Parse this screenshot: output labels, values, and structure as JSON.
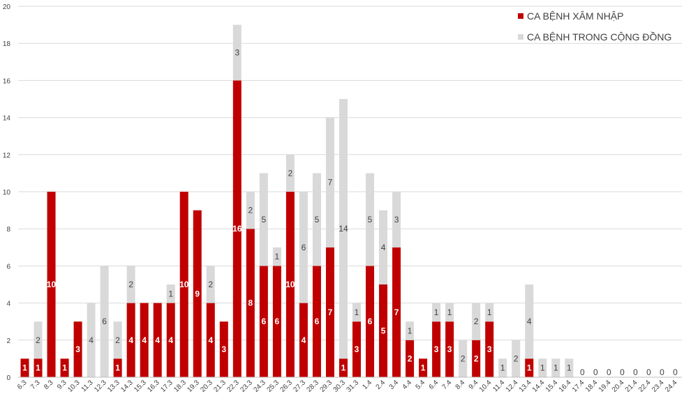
{
  "colors": {
    "imported": "#c00000",
    "community": "#d9d9d9",
    "grid": "#d9d9d9",
    "axis": "#bfbfbf"
  },
  "chart_data": {
    "type": "bar",
    "stacked": true,
    "title": "",
    "xlabel": "",
    "ylabel": "",
    "ylim": [
      0,
      20
    ],
    "yticks": [
      0,
      2,
      4,
      6,
      8,
      10,
      12,
      14,
      16,
      18,
      20
    ],
    "grid": true,
    "legend_position": "top-right",
    "categories": [
      "6.3",
      "7.3",
      "8.3",
      "9.3",
      "10.3",
      "11.3",
      "12.3",
      "13.3",
      "14.3",
      "15.3",
      "16.3",
      "17.3",
      "18.3",
      "19.3",
      "20.3",
      "21.3",
      "22.3",
      "23.3",
      "24.3",
      "25.3",
      "26.3",
      "27.3",
      "28.3",
      "29.3",
      "30.3",
      "31.3",
      "1.4",
      "2.4",
      "3.4",
      "4.4",
      "5.4",
      "6.4",
      "7.4",
      "8.4",
      "9.4",
      "10.4",
      "11.4",
      "12.4",
      "13.4",
      "14.4",
      "15.4",
      "16.4",
      "17.4",
      "18.4",
      "19.4",
      "20.4",
      "21.4",
      "22.4",
      "23.4",
      "24.4"
    ],
    "series": [
      {
        "name": "CA BỆNH XÂM NHẬP",
        "color": "#c00000",
        "values": [
          1,
          1,
          10,
          1,
          3,
          0,
          0,
          1,
          4,
          4,
          4,
          4,
          10,
          9,
          4,
          3,
          16,
          8,
          6,
          6,
          10,
          4,
          6,
          7,
          1,
          3,
          6,
          5,
          7,
          2,
          1,
          3,
          3,
          0,
          2,
          3,
          0,
          0,
          1,
          0,
          0,
          0,
          0,
          0,
          0,
          0,
          0,
          0,
          0,
          0
        ]
      },
      {
        "name": "CA BỆNH TRONG CỘNG ĐỒNG",
        "color": "#d9d9d9",
        "values": [
          0,
          2,
          0,
          0,
          0,
          4,
          6,
          2,
          2,
          0,
          0,
          1,
          0,
          0,
          2,
          0,
          3,
          2,
          5,
          1,
          2,
          6,
          5,
          7,
          14,
          1,
          5,
          4,
          3,
          1,
          0,
          1,
          1,
          2,
          2,
          1,
          1,
          2,
          4,
          1,
          1,
          1,
          0,
          0,
          0,
          0,
          0,
          0,
          0,
          0
        ]
      }
    ],
    "zero_labels": [
      "0",
      "0",
      "0",
      "0",
      "0",
      "0",
      "0",
      "0"
    ]
  }
}
